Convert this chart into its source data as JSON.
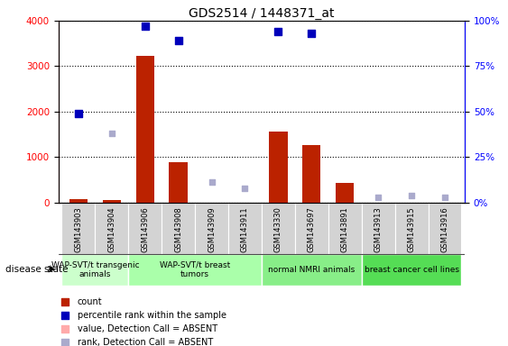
{
  "title": "GDS2514 / 1448371_at",
  "samples": [
    "GSM143903",
    "GSM143904",
    "GSM143906",
    "GSM143908",
    "GSM143909",
    "GSM143911",
    "GSM143330",
    "GSM143697",
    "GSM143891",
    "GSM143913",
    "GSM143915",
    "GSM143916"
  ],
  "count": [
    80,
    60,
    3220,
    880,
    0,
    0,
    1570,
    1270,
    430,
    0,
    0,
    0
  ],
  "percentile_rank": [
    49,
    0,
    97,
    89,
    0,
    0,
    94,
    93,
    0,
    0,
    0,
    0
  ],
  "rank_absent": [
    0,
    38,
    0,
    0,
    11,
    8,
    0,
    0,
    0,
    3,
    4,
    3
  ],
  "ylim_left": [
    0,
    4000
  ],
  "ylim_right": [
    0,
    100
  ],
  "bar_color_red": "#bb2200",
  "dot_color_blue": "#0000bb",
  "dot_color_lavender": "#aaaacc",
  "dot_color_pink": "#ffaaaa",
  "group_defs": [
    {
      "start": 0,
      "end": 1,
      "label": "WAP-SVT/t transgenic\nanimals",
      "color": "#ccffcc"
    },
    {
      "start": 2,
      "end": 5,
      "label": "WAP-SVT/t breast\ntumors",
      "color": "#aaffaa"
    },
    {
      "start": 6,
      "end": 8,
      "label": "normal NMRI animals",
      "color": "#88ee88"
    },
    {
      "start": 9,
      "end": 11,
      "label": "breast cancer cell lines",
      "color": "#55dd55"
    }
  ],
  "legend_items": [
    {
      "color": "#bb2200",
      "label": "count"
    },
    {
      "color": "#0000bb",
      "label": "percentile rank within the sample"
    },
    {
      "color": "#ffaaaa",
      "label": "value, Detection Call = ABSENT"
    },
    {
      "color": "#aaaacc",
      "label": "rank, Detection Call = ABSENT"
    }
  ]
}
